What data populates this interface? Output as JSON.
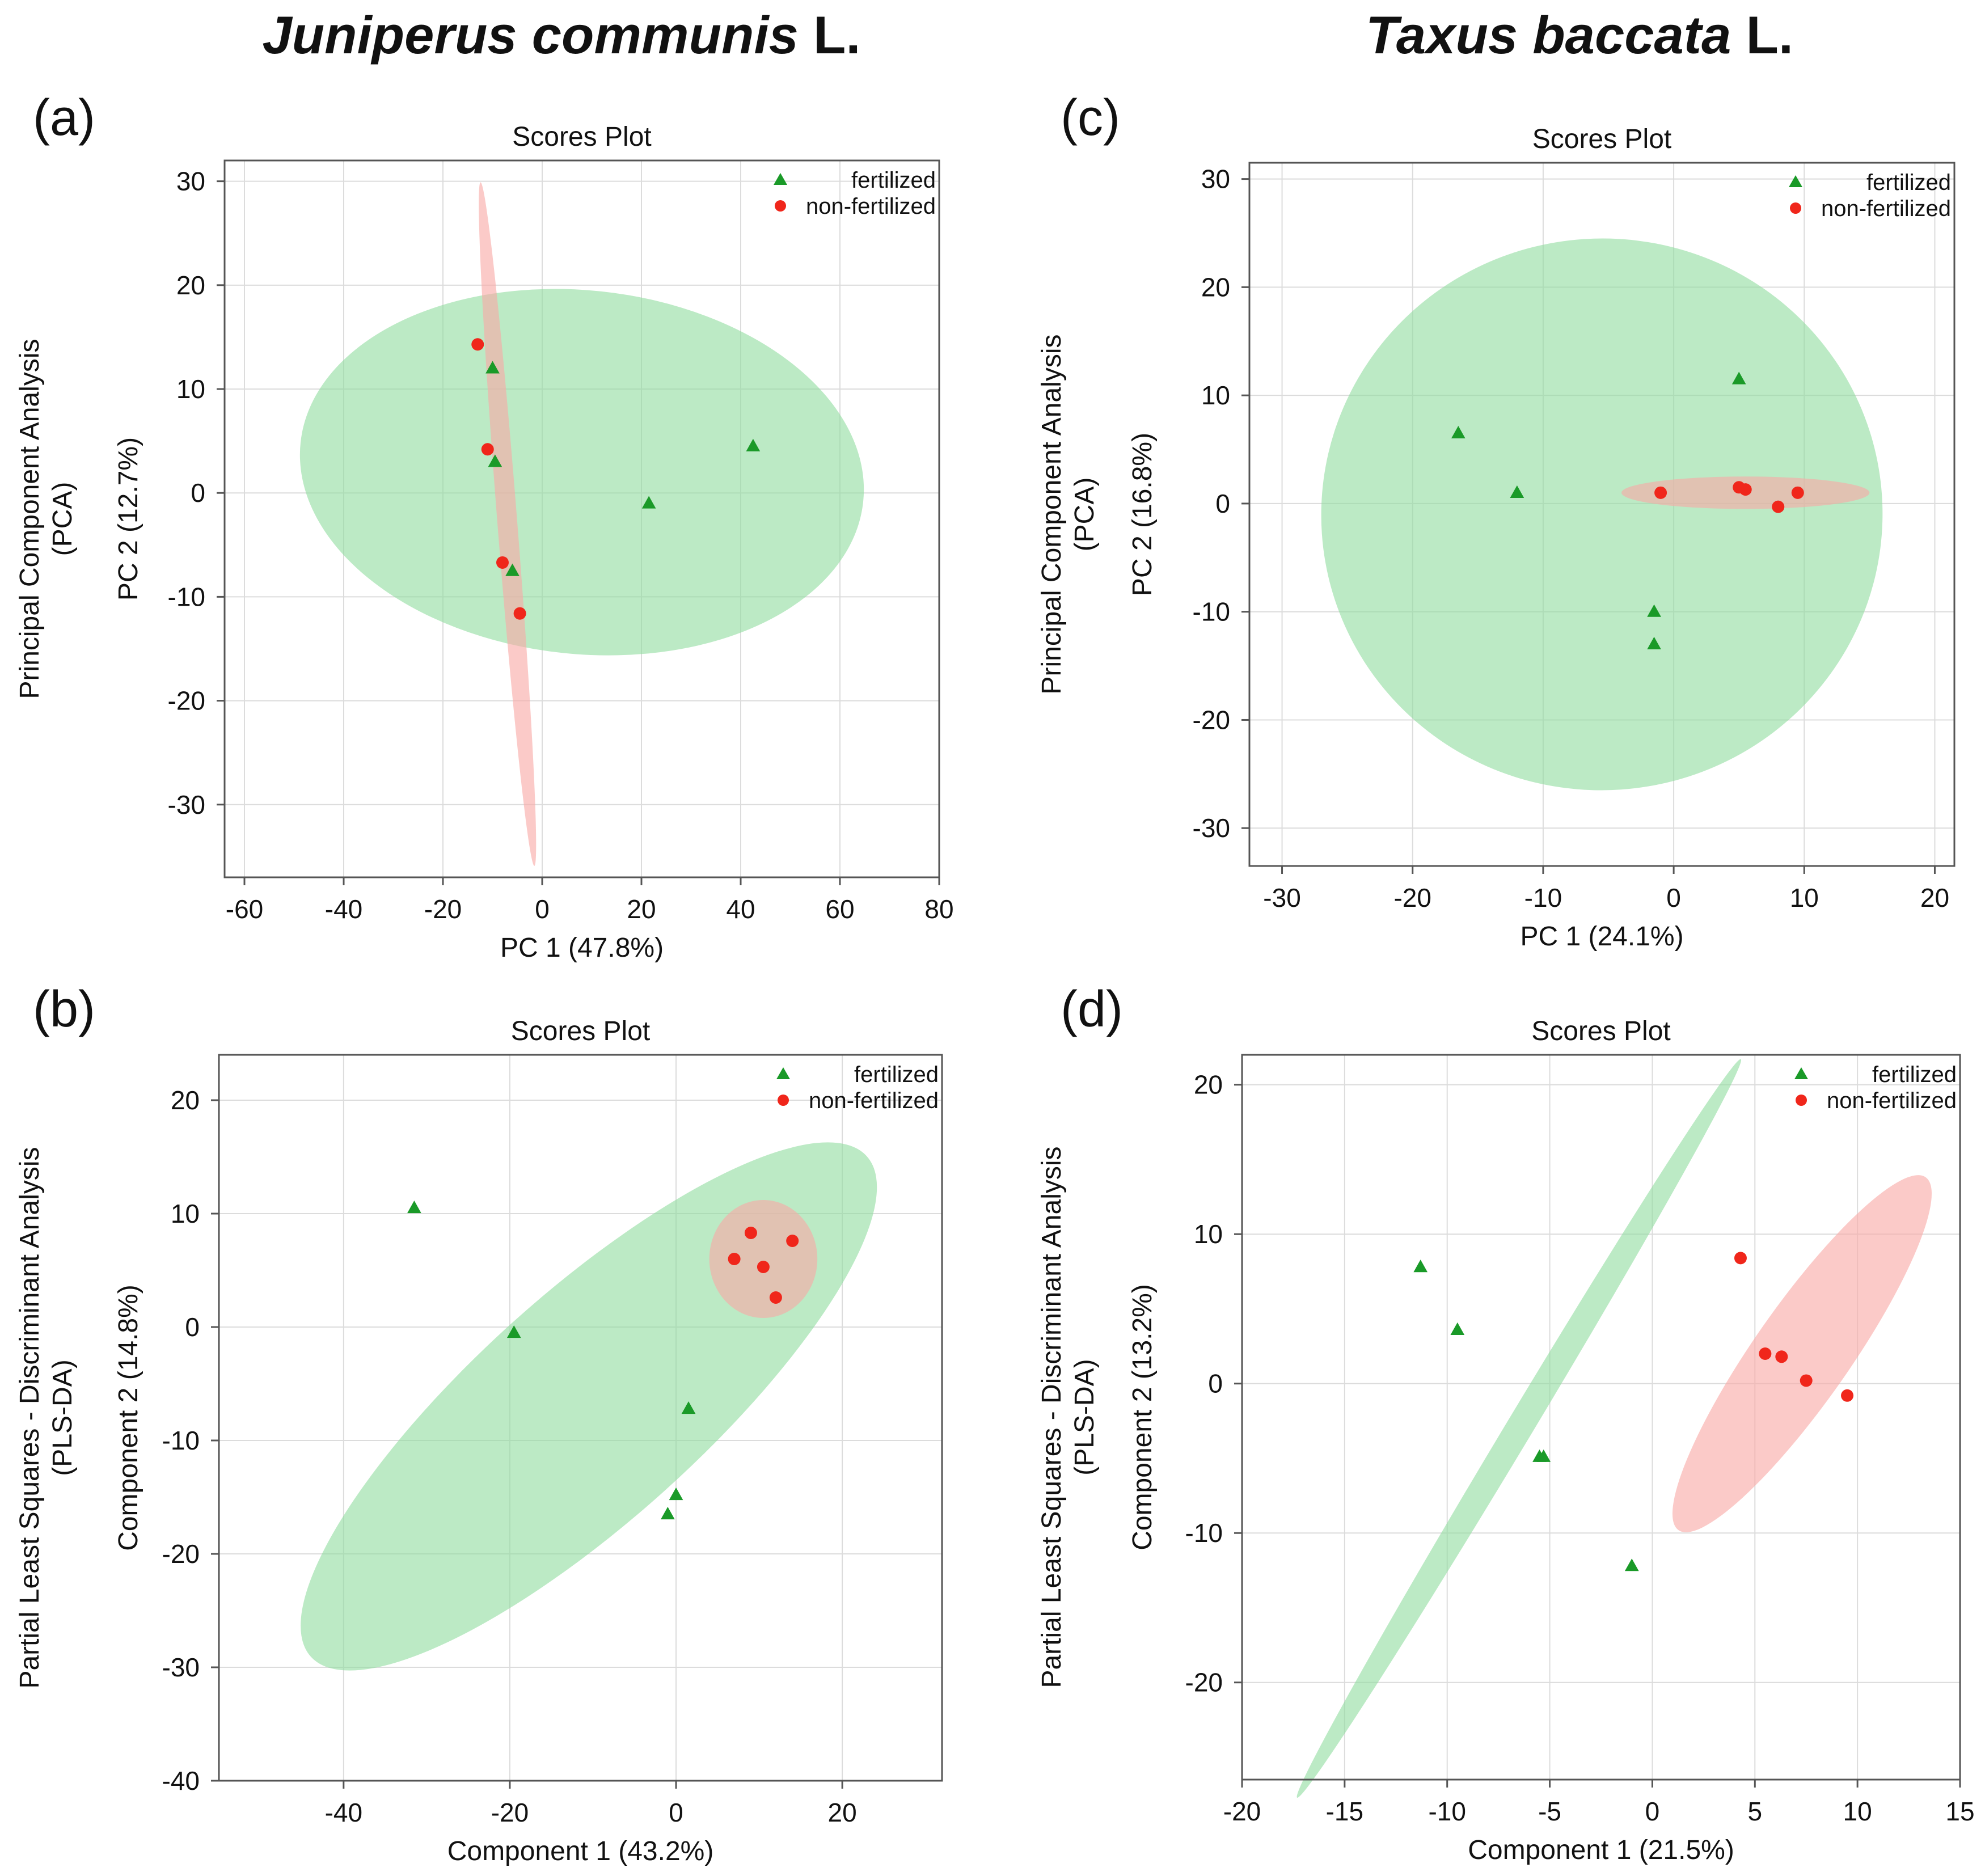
{
  "header": {
    "left_italic": "Juniperus communis",
    "left_suffix": "L.",
    "right_italic": "Taxus baccata",
    "right_suffix": "L."
  },
  "colors": {
    "fertilized": "#1a9a28",
    "non_fertilized": "#f0261b",
    "fertilized_ellipse": "#8fdc9f",
    "non_fertilized_ellipse": "#f8a9a6",
    "grid": "#dcdcdc",
    "axis": "#555555"
  },
  "chart_data": [
    {
      "id": "a",
      "panel_label": "(a)",
      "type": "scatter",
      "title": "Scores Plot",
      "xlabel": "PC 1 (47.8%)",
      "ylabel": "PC 2 (12.7%)",
      "side_label": [
        "Principal Component Analysis",
        "(PCA)"
      ],
      "xlim": [
        -64,
        80
      ],
      "ylim": [
        -37,
        32
      ],
      "xticks": [
        -60,
        -40,
        -20,
        0,
        20,
        40,
        60,
        80
      ],
      "yticks": [
        -30,
        -20,
        -10,
        0,
        10,
        20,
        30
      ],
      "legend": [
        "fertilized",
        "non-fertilized"
      ],
      "ellipses": [
        {
          "group": "fertilized",
          "cx": 8,
          "cy": 2,
          "rx": 57,
          "ry": 17.5,
          "angle": -6
        },
        {
          "group": "non-fertilized",
          "cx": -7,
          "cy": -3,
          "rx": 2,
          "ry": 33,
          "angle": 4.5
        }
      ],
      "series": [
        {
          "name": "fertilized",
          "marker": "triangle",
          "points": [
            [
              -10,
              12
            ],
            [
              -9.5,
              3
            ],
            [
              -6,
              -7.5
            ],
            [
              21.5,
              -1
            ],
            [
              42.5,
              4.5
            ]
          ]
        },
        {
          "name": "non-fertilized",
          "marker": "circle",
          "points": [
            [
              -13,
              14.3
            ],
            [
              -11,
              4.2
            ],
            [
              -8,
              -6.7
            ],
            [
              -4.5,
              -11.6
            ]
          ]
        }
      ]
    },
    {
      "id": "b",
      "panel_label": "(b)",
      "type": "scatter",
      "title": "Scores Plot",
      "xlabel": "Component 1 (43.2%)",
      "ylabel": "Component 2 (14.8%)",
      "side_label": [
        "Partial Least Squares - Discriminant Analysis",
        "(PLS-DA)"
      ],
      "xlim": [
        -55,
        32
      ],
      "ylim": [
        -40,
        24
      ],
      "xticks": [
        -40,
        -20,
        0,
        20
      ],
      "yticks": [
        -40,
        -30,
        -20,
        -10,
        0,
        10,
        20
      ],
      "legend": [
        "fertilized",
        "non-fertilized"
      ],
      "ellipses": [
        {
          "group": "fertilized",
          "cx": -10.5,
          "cy": -7,
          "rx": 45,
          "ry": 10,
          "angle": 42
        },
        {
          "group": "non-fertilized",
          "cx": 10.5,
          "cy": 6,
          "rx": 6.5,
          "ry": 5.2,
          "angle": 0
        }
      ],
      "series": [
        {
          "name": "fertilized",
          "marker": "triangle",
          "points": [
            [
              -31.5,
              10.5
            ],
            [
              -19.5,
              -0.5
            ],
            [
              1.5,
              -7.2
            ],
            [
              0,
              -14.8
            ],
            [
              -1,
              -16.5
            ]
          ]
        },
        {
          "name": "non-fertilized",
          "marker": "circle",
          "points": [
            [
              9,
              8.3
            ],
            [
              7,
              6
            ],
            [
              10.5,
              5.3
            ],
            [
              14,
              7.6
            ],
            [
              12,
              2.6
            ]
          ]
        }
      ]
    },
    {
      "id": "c",
      "panel_label": "(c)",
      "type": "scatter",
      "title": "Scores Plot",
      "xlabel": "PC 1 (24.1%)",
      "ylabel": "PC 2 (16.8%)",
      "side_label": [
        "Principal Component Analysis",
        "(PCA)"
      ],
      "xlim": [
        -32.5,
        21.5
      ],
      "ylim": [
        -33.5,
        31.5
      ],
      "xticks": [
        -30,
        -20,
        -10,
        0,
        10,
        20
      ],
      "yticks": [
        -30,
        -20,
        -10,
        0,
        10,
        20,
        30
      ],
      "legend": [
        "fertilized",
        "non-fertilized"
      ],
      "ellipses": [
        {
          "group": "fertilized",
          "cx": -5.5,
          "cy": -1,
          "rx": 21.5,
          "ry": 25.5,
          "angle": 4
        },
        {
          "group": "non-fertilized",
          "cx": 5.5,
          "cy": 1,
          "rx": 9.5,
          "ry": 1.5,
          "angle": 0
        }
      ],
      "series": [
        {
          "name": "fertilized",
          "marker": "triangle",
          "points": [
            [
              -16.5,
              6.5
            ],
            [
              -12,
              1
            ],
            [
              5,
              11.5
            ],
            [
              -1.5,
              -10
            ],
            [
              -1.5,
              -13
            ]
          ]
        },
        {
          "name": "non-fertilized",
          "marker": "circle",
          "points": [
            [
              -1,
              1
            ],
            [
              5,
              1.5
            ],
            [
              5.5,
              1.3
            ],
            [
              9.5,
              1
            ],
            [
              8,
              -0.3
            ]
          ]
        }
      ]
    },
    {
      "id": "d",
      "panel_label": "(d)",
      "type": "scatter",
      "title": "Scores Plot",
      "xlabel": "Component 1 (21.5%)",
      "ylabel": "Component 2 (13.2%)",
      "side_label": [
        "Partial Least Squares - Discriminant Analysis",
        "(PLS-DA)"
      ],
      "xlim": [
        -20,
        15
      ],
      "ylim": [
        -26.5,
        22
      ],
      "xticks": [
        -20,
        -15,
        -10,
        -5,
        0,
        5,
        10,
        15
      ],
      "yticks": [
        -20,
        -10,
        0,
        10,
        20
      ],
      "legend": [
        "fertilized",
        "non-fertilized"
      ],
      "ellipses": [
        {
          "group": "fertilized",
          "cx": -6.5,
          "cy": -3,
          "rx": 21,
          "ry": 0.9,
          "angle": 59
        },
        {
          "group": "non-fertilized",
          "cx": 7.3,
          "cy": 2,
          "rx": 10.5,
          "ry": 3.2,
          "angle": 55
        }
      ],
      "series": [
        {
          "name": "fertilized",
          "marker": "triangle",
          "points": [
            [
              -11.3,
              7.8
            ],
            [
              -9.5,
              3.6
            ],
            [
              -5.5,
              -4.9
            ],
            [
              -5.3,
              -4.9
            ],
            [
              -1,
              -12.2
            ]
          ]
        },
        {
          "name": "non-fertilized",
          "marker": "circle",
          "points": [
            [
              4.3,
              8.4
            ],
            [
              5.5,
              2
            ],
            [
              6.3,
              1.8
            ],
            [
              7.5,
              0.2
            ],
            [
              9.5,
              -0.8
            ]
          ]
        }
      ]
    }
  ]
}
